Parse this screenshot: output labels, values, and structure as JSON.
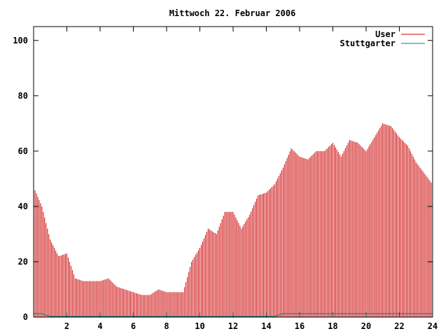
{
  "chart_data": {
    "type": "bar",
    "title": "Mittwoch 22. Februar 2006",
    "xlabel": "",
    "ylabel": "",
    "xlim": [
      0,
      24
    ],
    "ylim": [
      0,
      105
    ],
    "x_ticks": [
      {
        "value": 2,
        "label": "2"
      },
      {
        "value": 4,
        "label": "4"
      },
      {
        "value": 6,
        "label": "6"
      },
      {
        "value": 8,
        "label": "8"
      },
      {
        "value": 10,
        "label": "10"
      },
      {
        "value": 12,
        "label": "12"
      },
      {
        "value": 14,
        "label": "14"
      },
      {
        "value": 16,
        "label": "16"
      },
      {
        "value": 18,
        "label": "18"
      },
      {
        "value": 20,
        "label": "20"
      },
      {
        "value": 22,
        "label": "22"
      },
      {
        "value": 24,
        "label": "24"
      }
    ],
    "y_ticks": [
      {
        "value": 0,
        "label": "0"
      },
      {
        "value": 20,
        "label": "20"
      },
      {
        "value": 40,
        "label": "40"
      },
      {
        "value": 60,
        "label": "60"
      },
      {
        "value": 80,
        "label": "80"
      },
      {
        "value": 100,
        "label": "100"
      }
    ],
    "grid": false,
    "legend_position": "top-right",
    "series": [
      {
        "name": "User",
        "color": "#cc0000",
        "x": [
          0.0,
          0.5,
          1.0,
          1.5,
          2.0,
          2.5,
          3.0,
          3.5,
          4.0,
          4.5,
          5.0,
          5.5,
          6.0,
          6.5,
          7.0,
          7.5,
          8.0,
          8.5,
          9.0,
          9.5,
          10.0,
          10.5,
          11.0,
          11.5,
          12.0,
          12.5,
          13.0,
          13.5,
          14.0,
          14.5,
          15.0,
          15.5,
          16.0,
          16.5,
          17.0,
          17.5,
          18.0,
          18.5,
          19.0,
          19.5,
          20.0,
          20.5,
          21.0,
          21.5,
          22.0,
          22.5,
          23.0,
          23.5,
          24.0
        ],
        "values": [
          47,
          40,
          28,
          22,
          23,
          14,
          13,
          13,
          13,
          14,
          11,
          10,
          9,
          8,
          8,
          10,
          9,
          9,
          9,
          20,
          25,
          32,
          30,
          38,
          38,
          32,
          37,
          44,
          45,
          48,
          54,
          61,
          58,
          57,
          60,
          60,
          63,
          58,
          64,
          63,
          60,
          65,
          70,
          69,
          65,
          62,
          56,
          52,
          48
        ]
      },
      {
        "name": "Stuttgarter",
        "color": "#008080",
        "x": [
          0.0,
          0.5,
          1.0,
          1.5,
          2.0,
          2.5,
          3.0,
          3.5,
          4.0,
          4.5,
          5.0,
          5.5,
          6.0,
          6.5,
          7.0,
          7.5,
          8.0,
          8.5,
          9.0,
          9.5,
          10.0,
          10.5,
          11.0,
          11.5,
          12.0,
          12.5,
          13.0,
          13.5,
          14.0,
          14.5,
          15.0,
          15.5,
          16.0,
          16.5,
          17.0,
          17.5,
          18.0,
          18.5,
          19.0,
          19.5,
          20.0,
          20.5,
          21.0,
          21.5,
          22.0,
          22.5,
          23.0,
          23.5,
          24.0
        ],
        "values": [
          1,
          1,
          0,
          0,
          0,
          0,
          0,
          0,
          0,
          0,
          0,
          0,
          0,
          0,
          0,
          0,
          0,
          0,
          0,
          0,
          0,
          0,
          0,
          0,
          0,
          0,
          0,
          0,
          0,
          0,
          1,
          1,
          1,
          1,
          1,
          1,
          1,
          1,
          1,
          1,
          1,
          1,
          1,
          1,
          1,
          1,
          1,
          1,
          1
        ]
      }
    ]
  }
}
